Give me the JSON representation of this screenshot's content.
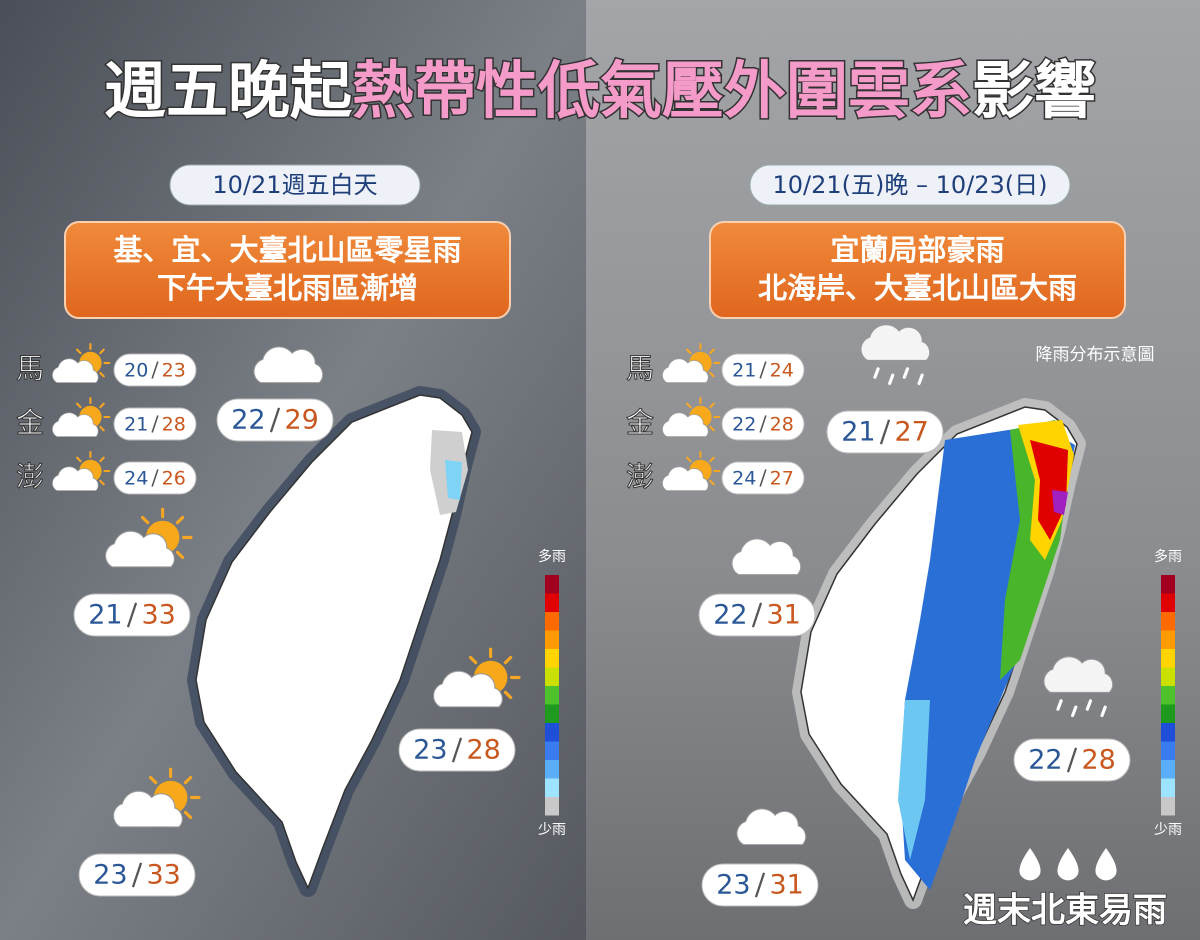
{
  "title": {
    "lead": "週五晚起",
    "highlight": "熱帶性低氣壓外圍雲系",
    "tail": "影響"
  },
  "panels": [
    {
      "date": "10/21週五白天",
      "headline": [
        "基、宜、大臺北山區零星雨",
        "下午大臺北雨區漸增"
      ],
      "islands": [
        {
          "name": "馬",
          "low": "20",
          "high": "23"
        },
        {
          "name": "金",
          "low": "21",
          "high": "28"
        },
        {
          "name": "澎",
          "low": "24",
          "high": "26"
        }
      ],
      "regions": [
        {
          "low": "22",
          "high": "29"
        },
        {
          "low": "21",
          "high": "33"
        },
        {
          "low": "23",
          "high": "28"
        },
        {
          "low": "23",
          "high": "33"
        }
      ],
      "legend": {
        "top": "多雨",
        "bottom": "少雨"
      }
    },
    {
      "date": "10/21(五)晚 – 10/23(日)",
      "headline": [
        "宜蘭局部豪雨",
        "北海岸、大臺北山區大雨"
      ],
      "note": "降雨分布示意圖",
      "islands": [
        {
          "name": "馬",
          "low": "21",
          "high": "24"
        },
        {
          "name": "金",
          "low": "22",
          "high": "28"
        },
        {
          "name": "澎",
          "low": "24",
          "high": "27"
        }
      ],
      "regions": [
        {
          "low": "21",
          "high": "27"
        },
        {
          "low": "22",
          "high": "31"
        },
        {
          "low": "22",
          "high": "28"
        },
        {
          "low": "23",
          "high": "31"
        }
      ],
      "legend": {
        "top": "多雨",
        "bottom": "少雨"
      },
      "footer": "週末北東易雨"
    }
  ]
}
